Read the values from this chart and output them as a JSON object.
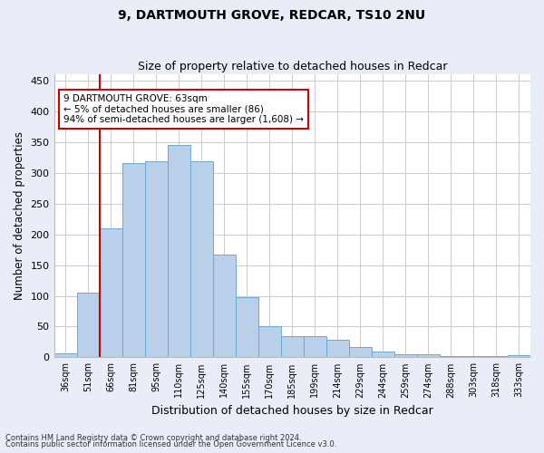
{
  "title1": "9, DARTMOUTH GROVE, REDCAR, TS10 2NU",
  "title2": "Size of property relative to detached houses in Redcar",
  "xlabel": "Distribution of detached houses by size in Redcar",
  "ylabel": "Number of detached properties",
  "categories": [
    "36sqm",
    "51sqm",
    "66sqm",
    "81sqm",
    "95sqm",
    "110sqm",
    "125sqm",
    "140sqm",
    "155sqm",
    "170sqm",
    "185sqm",
    "199sqm",
    "214sqm",
    "229sqm",
    "244sqm",
    "259sqm",
    "274sqm",
    "288sqm",
    "303sqm",
    "318sqm",
    "333sqm"
  ],
  "values": [
    7,
    105,
    210,
    316,
    318,
    345,
    319,
    167,
    98,
    50,
    35,
    35,
    29,
    17,
    10,
    5,
    5,
    2,
    2,
    2,
    3
  ],
  "bar_color": "#b8d0ea",
  "bar_edge_color": "#6aaad4",
  "bar_width": 1.0,
  "vline_x": 1.5,
  "vline_color": "#cc0000",
  "annotation_line1": "9 DARTMOUTH GROVE: 63sqm",
  "annotation_line2": "← 5% of detached houses are smaller (86)",
  "annotation_line3": "94% of semi-detached houses are larger (1,608) →",
  "annotation_box_color": "#cc0000",
  "ylim": [
    0,
    460
  ],
  "yticks": [
    0,
    50,
    100,
    150,
    200,
    250,
    300,
    350,
    400,
    450
  ],
  "footer1": "Contains HM Land Registry data © Crown copyright and database right 2024.",
  "footer2": "Contains public sector information licensed under the Open Government Licence v3.0.",
  "bg_color": "#e8edf8",
  "plot_bg_color": "#ffffff",
  "grid_color": "#cccccc"
}
